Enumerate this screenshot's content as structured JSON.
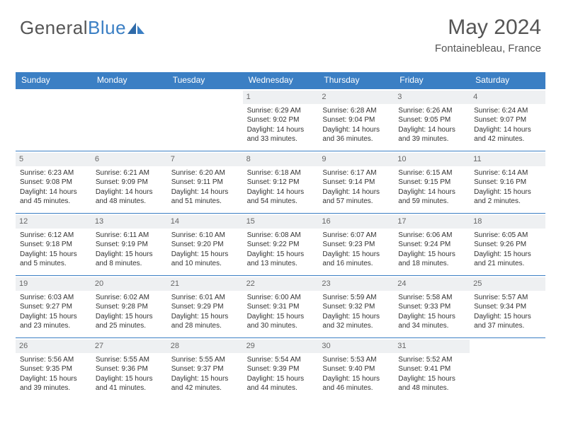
{
  "brand": {
    "part1": "General",
    "part2": "Blue"
  },
  "title": "May 2024",
  "location": "Fontainebleau, France",
  "colors": {
    "header_bg": "#3b7fc4",
    "header_text": "#ffffff",
    "daynum_bg": "#eef0f2",
    "body_text": "#333333",
    "title_text": "#555555"
  },
  "typography": {
    "title_fontsize": 30,
    "location_fontsize": 15,
    "dayhead_fontsize": 12,
    "cell_fontsize": 10
  },
  "layout": {
    "columns": 7,
    "rows": 5,
    "leading_blanks": 3
  },
  "weekdays": [
    "Sunday",
    "Monday",
    "Tuesday",
    "Wednesday",
    "Thursday",
    "Friday",
    "Saturday"
  ],
  "days": [
    {
      "n": "1",
      "sunrise": "6:29 AM",
      "sunset": "9:02 PM",
      "daylight": "14 hours and 33 minutes."
    },
    {
      "n": "2",
      "sunrise": "6:28 AM",
      "sunset": "9:04 PM",
      "daylight": "14 hours and 36 minutes."
    },
    {
      "n": "3",
      "sunrise": "6:26 AM",
      "sunset": "9:05 PM",
      "daylight": "14 hours and 39 minutes."
    },
    {
      "n": "4",
      "sunrise": "6:24 AM",
      "sunset": "9:07 PM",
      "daylight": "14 hours and 42 minutes."
    },
    {
      "n": "5",
      "sunrise": "6:23 AM",
      "sunset": "9:08 PM",
      "daylight": "14 hours and 45 minutes."
    },
    {
      "n": "6",
      "sunrise": "6:21 AM",
      "sunset": "9:09 PM",
      "daylight": "14 hours and 48 minutes."
    },
    {
      "n": "7",
      "sunrise": "6:20 AM",
      "sunset": "9:11 PM",
      "daylight": "14 hours and 51 minutes."
    },
    {
      "n": "8",
      "sunrise": "6:18 AM",
      "sunset": "9:12 PM",
      "daylight": "14 hours and 54 minutes."
    },
    {
      "n": "9",
      "sunrise": "6:17 AM",
      "sunset": "9:14 PM",
      "daylight": "14 hours and 57 minutes."
    },
    {
      "n": "10",
      "sunrise": "6:15 AM",
      "sunset": "9:15 PM",
      "daylight": "14 hours and 59 minutes."
    },
    {
      "n": "11",
      "sunrise": "6:14 AM",
      "sunset": "9:16 PM",
      "daylight": "15 hours and 2 minutes."
    },
    {
      "n": "12",
      "sunrise": "6:12 AM",
      "sunset": "9:18 PM",
      "daylight": "15 hours and 5 minutes."
    },
    {
      "n": "13",
      "sunrise": "6:11 AM",
      "sunset": "9:19 PM",
      "daylight": "15 hours and 8 minutes."
    },
    {
      "n": "14",
      "sunrise": "6:10 AM",
      "sunset": "9:20 PM",
      "daylight": "15 hours and 10 minutes."
    },
    {
      "n": "15",
      "sunrise": "6:08 AM",
      "sunset": "9:22 PM",
      "daylight": "15 hours and 13 minutes."
    },
    {
      "n": "16",
      "sunrise": "6:07 AM",
      "sunset": "9:23 PM",
      "daylight": "15 hours and 16 minutes."
    },
    {
      "n": "17",
      "sunrise": "6:06 AM",
      "sunset": "9:24 PM",
      "daylight": "15 hours and 18 minutes."
    },
    {
      "n": "18",
      "sunrise": "6:05 AM",
      "sunset": "9:26 PM",
      "daylight": "15 hours and 21 minutes."
    },
    {
      "n": "19",
      "sunrise": "6:03 AM",
      "sunset": "9:27 PM",
      "daylight": "15 hours and 23 minutes."
    },
    {
      "n": "20",
      "sunrise": "6:02 AM",
      "sunset": "9:28 PM",
      "daylight": "15 hours and 25 minutes."
    },
    {
      "n": "21",
      "sunrise": "6:01 AM",
      "sunset": "9:29 PM",
      "daylight": "15 hours and 28 minutes."
    },
    {
      "n": "22",
      "sunrise": "6:00 AM",
      "sunset": "9:31 PM",
      "daylight": "15 hours and 30 minutes."
    },
    {
      "n": "23",
      "sunrise": "5:59 AM",
      "sunset": "9:32 PM",
      "daylight": "15 hours and 32 minutes."
    },
    {
      "n": "24",
      "sunrise": "5:58 AM",
      "sunset": "9:33 PM",
      "daylight": "15 hours and 34 minutes."
    },
    {
      "n": "25",
      "sunrise": "5:57 AM",
      "sunset": "9:34 PM",
      "daylight": "15 hours and 37 minutes."
    },
    {
      "n": "26",
      "sunrise": "5:56 AM",
      "sunset": "9:35 PM",
      "daylight": "15 hours and 39 minutes."
    },
    {
      "n": "27",
      "sunrise": "5:55 AM",
      "sunset": "9:36 PM",
      "daylight": "15 hours and 41 minutes."
    },
    {
      "n": "28",
      "sunrise": "5:55 AM",
      "sunset": "9:37 PM",
      "daylight": "15 hours and 42 minutes."
    },
    {
      "n": "29",
      "sunrise": "5:54 AM",
      "sunset": "9:39 PM",
      "daylight": "15 hours and 44 minutes."
    },
    {
      "n": "30",
      "sunrise": "5:53 AM",
      "sunset": "9:40 PM",
      "daylight": "15 hours and 46 minutes."
    },
    {
      "n": "31",
      "sunrise": "5:52 AM",
      "sunset": "9:41 PM",
      "daylight": "15 hours and 48 minutes."
    }
  ],
  "labels": {
    "sunrise": "Sunrise: ",
    "sunset": "Sunset: ",
    "daylight": "Daylight: "
  }
}
